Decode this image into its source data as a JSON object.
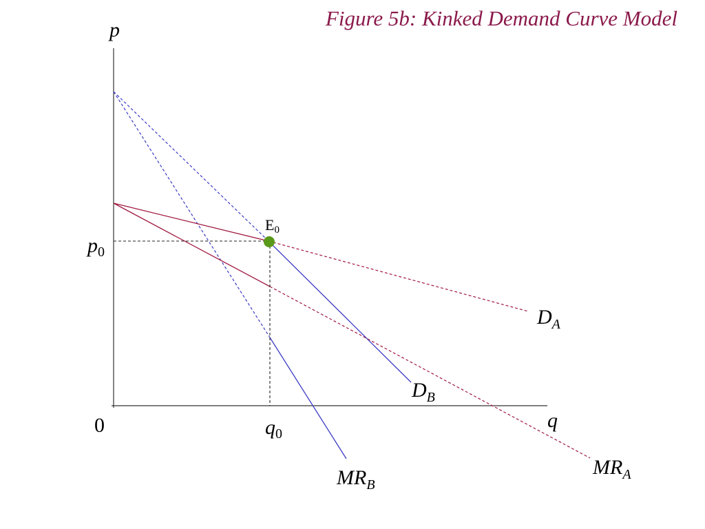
{
  "title": "Figure 5b: Kinked Demand Curve Model",
  "axes": {
    "y_label": "p",
    "x_label": "q",
    "origin": "0"
  },
  "labels": [
    {
      "main": "p",
      "sub": "0"
    },
    {
      "main": "q",
      "sub": "0"
    },
    {
      "main": "E",
      "sub": "0"
    },
    {
      "main": "D",
      "sub": "A"
    },
    {
      "main": "D",
      "sub": "B"
    },
    {
      "main": "MR",
      "sub": "A"
    },
    {
      "main": "MR",
      "sub": "B"
    }
  ]
}
